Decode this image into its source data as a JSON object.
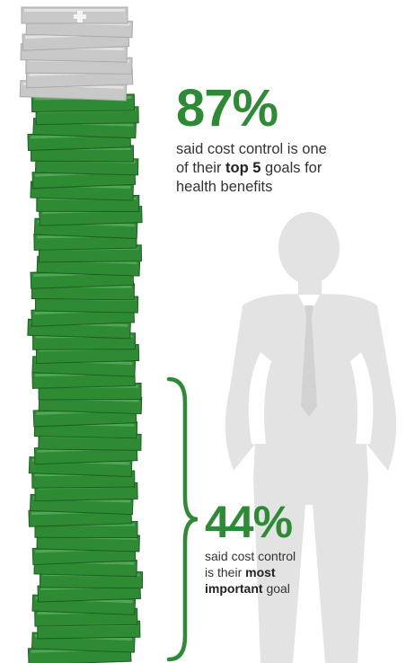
{
  "stat_top": {
    "figure": "87%",
    "line1": "said cost control is one",
    "line2_prefix": "of their ",
    "line2_bold": "top 5",
    "line2_suffix": " goals for",
    "line3": "health benefits"
  },
  "stat_bottom": {
    "figure": "44%",
    "line1": "said cost control",
    "line2_prefix": "is their ",
    "line2_bold": "most",
    "line3_bold": "important",
    "line3_suffix": " goal"
  },
  "bill_stack": {
    "total_bills": 52,
    "gray_bills": 7,
    "green_share_percent": 87,
    "bracketed_share_percent": 44
  },
  "colors": {
    "accent_green": "#2e8b35",
    "bill_green": "#2f8a34",
    "bill_gray": "#c8c8c8",
    "figure_gray": "#e3e3e3",
    "text": "#333333"
  }
}
